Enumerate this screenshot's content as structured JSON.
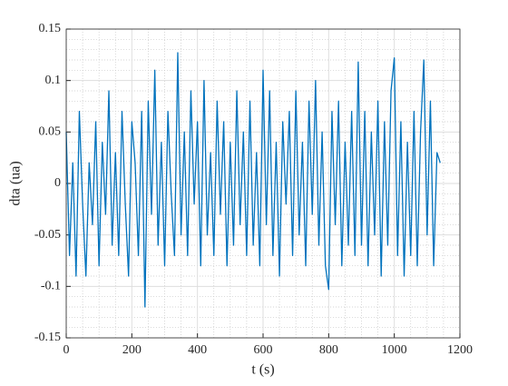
{
  "chart_data": {
    "type": "line",
    "xlabel": "t (s)",
    "ylabel": "dta (ua)",
    "x": [
      0,
      10,
      20,
      30,
      40,
      50,
      60,
      70,
      80,
      90,
      100,
      110,
      120,
      130,
      140,
      150,
      160,
      170,
      180,
      190,
      200,
      210,
      220,
      230,
      240,
      250,
      260,
      270,
      280,
      290,
      300,
      310,
      320,
      330,
      340,
      350,
      360,
      370,
      380,
      390,
      400,
      410,
      420,
      430,
      440,
      450,
      460,
      470,
      480,
      490,
      500,
      510,
      520,
      530,
      540,
      550,
      560,
      570,
      580,
      590,
      600,
      610,
      620,
      630,
      640,
      650,
      660,
      670,
      680,
      690,
      700,
      710,
      720,
      730,
      740,
      750,
      760,
      770,
      780,
      790,
      800,
      810,
      820,
      830,
      840,
      850,
      860,
      870,
      880,
      890,
      900,
      910,
      920,
      930,
      940,
      950,
      960,
      970,
      980,
      990,
      1000,
      1010,
      1020,
      1030,
      1040,
      1050,
      1060,
      1070,
      1080,
      1090,
      1100,
      1110,
      1120,
      1130,
      1140
    ],
    "series": [
      {
        "color": "#0072bd",
        "values": [
          0.05,
          -0.07,
          0.02,
          -0.09,
          0.07,
          -0.02,
          -0.09,
          0.02,
          -0.04,
          0.06,
          -0.08,
          0.04,
          -0.03,
          0.09,
          -0.06,
          0.03,
          -0.07,
          0.07,
          -0.02,
          -0.09,
          0.06,
          0.02,
          -0.07,
          0.07,
          -0.12,
          0.08,
          -0.03,
          0.11,
          -0.06,
          0.04,
          -0.08,
          0.07,
          -0.01,
          -0.07,
          0.127,
          -0.05,
          0.05,
          -0.07,
          0.09,
          -0.02,
          0.06,
          -0.08,
          0.1,
          -0.05,
          0.03,
          -0.07,
          0.08,
          -0.03,
          0.06,
          -0.08,
          0.04,
          -0.06,
          0.09,
          -0.04,
          0.05,
          -0.07,
          0.08,
          -0.06,
          0.03,
          -0.08,
          0.11,
          -0.04,
          0.09,
          -0.07,
          0.04,
          -0.09,
          0.06,
          -0.02,
          0.07,
          -0.07,
          0.09,
          -0.05,
          0.04,
          -0.08,
          0.08,
          -0.03,
          0.1,
          -0.06,
          0.05,
          -0.08,
          -0.103,
          0.07,
          -0.04,
          0.08,
          -0.08,
          0.04,
          -0.06,
          0.07,
          -0.07,
          0.118,
          -0.06,
          0.07,
          -0.08,
          0.05,
          -0.05,
          0.08,
          -0.09,
          0.06,
          -0.06,
          0.09,
          0.122,
          -0.07,
          0.06,
          -0.09,
          0.04,
          -0.07,
          0.07,
          -0.08,
          0.05,
          0.12,
          -0.05,
          0.08,
          -0.08,
          0.03,
          0.02
        ]
      }
    ],
    "xlim": [
      0,
      1200
    ],
    "xticks": [
      0,
      200,
      400,
      600,
      800,
      1000,
      1200
    ],
    "ylim": [
      -0.15,
      0.15
    ],
    "yticks": [
      -0.15,
      -0.1,
      -0.05,
      0,
      0.05,
      0.1,
      0.15
    ],
    "grid": true,
    "minor_grid": true
  }
}
